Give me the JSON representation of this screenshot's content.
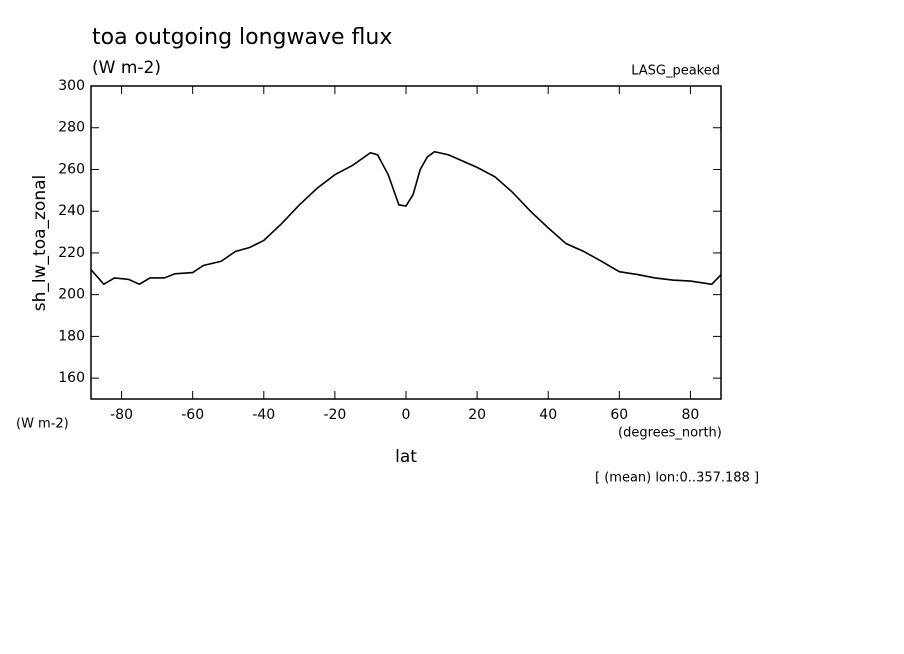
{
  "chart_data": {
    "type": "line",
    "title": "toa outgoing longwave flux",
    "subtitle": "(W m-2)",
    "dataset_label": "LASG_peaked",
    "y_axis_label": "sh_lw_toa_zonal",
    "y_units": "(W m-2)",
    "x_units": "(degrees_north)",
    "x_axis_label": "lat",
    "footnote": "[ (mean) lon:0..357.188 ]",
    "color": "#000000",
    "x": [
      -88.6,
      -85,
      -82,
      -78,
      -75,
      -72,
      -68,
      -65,
      -60,
      -57,
      -52,
      -48,
      -44,
      -40,
      -35,
      -30,
      -25,
      -20,
      -15,
      -10,
      -8,
      -5,
      -2,
      0,
      2,
      4,
      6,
      8,
      12,
      16,
      20,
      25,
      30,
      35,
      40,
      45,
      50,
      55,
      60,
      65,
      70,
      75,
      80,
      84,
      86,
      88.6
    ],
    "values": [
      212,
      205,
      208,
      207.3,
      205,
      208,
      208,
      210,
      210.6,
      214,
      216,
      220.7,
      222.6,
      226,
      234,
      243,
      251,
      257.5,
      262,
      268,
      267,
      257.5,
      243,
      242.5,
      248,
      260,
      266,
      268.5,
      267,
      264,
      261,
      256.5,
      249,
      240,
      232,
      224.5,
      220.7,
      216,
      211,
      209.7,
      208,
      207,
      206.5,
      205.5,
      205,
      209.5
    ],
    "xlim": [
      -88.6,
      88.6
    ],
    "xticks": [
      -80,
      -60,
      -40,
      -20,
      0,
      20,
      40,
      60,
      80
    ],
    "ylim": [
      150,
      300
    ],
    "yticks": [
      160,
      180,
      200,
      220,
      240,
      260,
      280,
      300
    ]
  }
}
